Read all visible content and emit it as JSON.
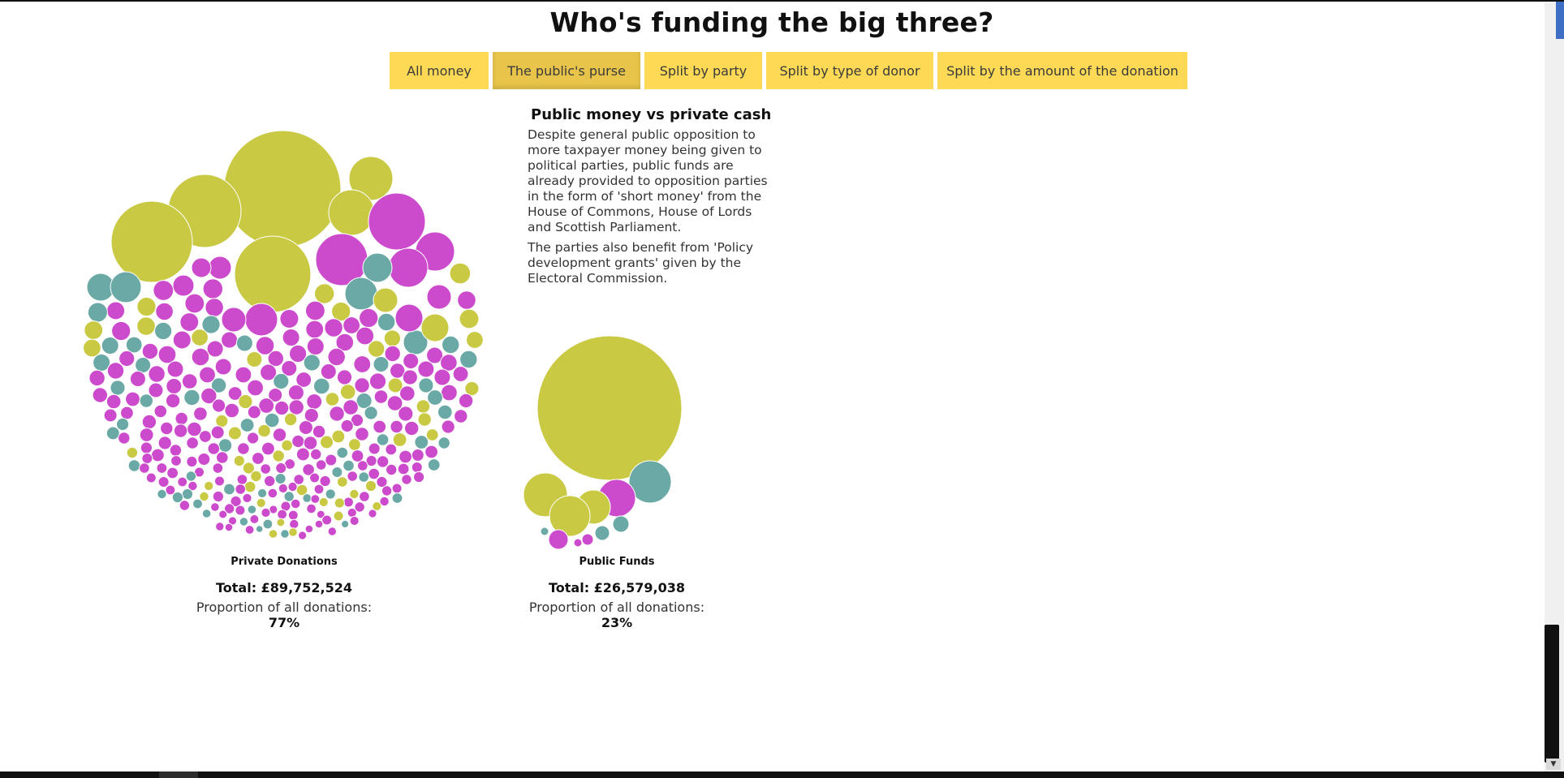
{
  "page": {
    "title": "Who's funding the big three?"
  },
  "tabs": [
    {
      "label": "All money"
    },
    {
      "label": "The public's purse",
      "active": true
    },
    {
      "label": "Split by party"
    },
    {
      "label": "Split by type of donor"
    },
    {
      "label": "Split by the amount of the donation"
    }
  ],
  "info": {
    "title": "Public money vs private cash",
    "paragraphs": [
      "Despite general public opposition to more taxpayer money being given to political parties, public funds are already provided to opposition parties in the form of 'short money' from the House of Commons, House of Lords and Scottish Parliament.",
      "The parties also benefit from 'Policy development grants' given by the Electoral Commission."
    ]
  },
  "colors": {
    "yellow_green": "#c9c944",
    "magenta": "#cc4acc",
    "teal": "#6aa9a6",
    "button": "#fdd955"
  },
  "groups": [
    {
      "label": "Private Donations",
      "total": "Total: £89,752,524",
      "proportion_label": "Proportion of all donations:",
      "proportion_value": "77%"
    },
    {
      "label": "Public Funds",
      "total": "Total: £26,579,038",
      "proportion_label": "Proportion of all donations:",
      "proportion_value": "23%"
    }
  ]
}
